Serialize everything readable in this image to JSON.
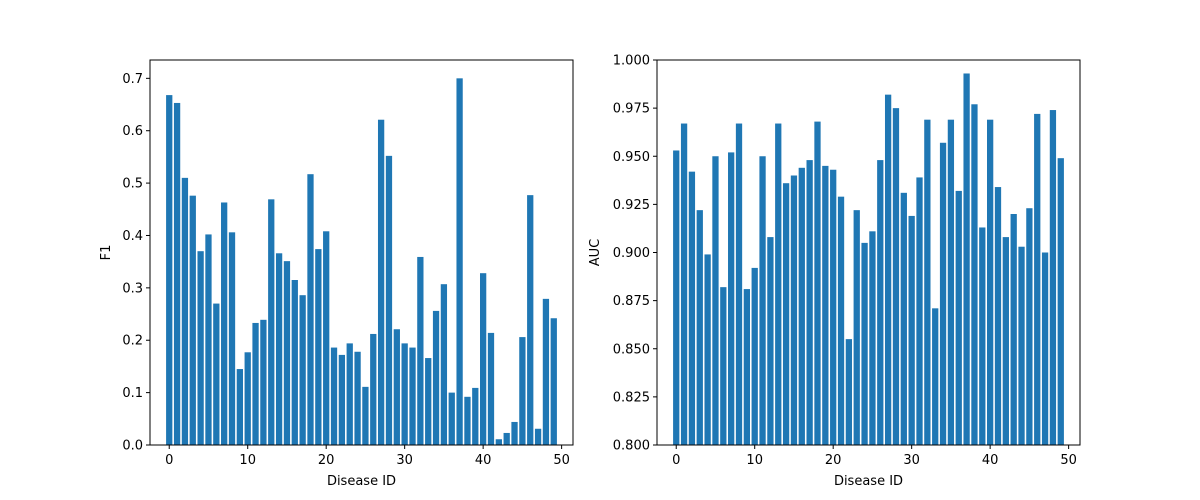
{
  "chart_data": [
    {
      "type": "bar",
      "xlabel": "Disease ID",
      "ylabel": "F1",
      "xlim": [
        -2.45,
        51.45
      ],
      "ylim": [
        0,
        0.735
      ],
      "xticks": [
        "0",
        "10",
        "20",
        "30",
        "40",
        "50"
      ],
      "xtick_values": [
        0,
        10,
        20,
        30,
        40,
        50
      ],
      "yticks": [
        "0.0",
        "0.1",
        "0.2",
        "0.3",
        "0.4",
        "0.5",
        "0.6",
        "0.7"
      ],
      "ytick_values": [
        0,
        0.1,
        0.2,
        0.3,
        0.4,
        0.5,
        0.6,
        0.7
      ],
      "color": "#1f77b4",
      "x": [
        0,
        1,
        2,
        3,
        4,
        5,
        6,
        7,
        8,
        9,
        10,
        11,
        12,
        13,
        14,
        15,
        16,
        17,
        18,
        19,
        20,
        21,
        22,
        23,
        24,
        25,
        26,
        27,
        28,
        29,
        30,
        31,
        32,
        33,
        34,
        35,
        36,
        37,
        38,
        39,
        40,
        41,
        42,
        43,
        44,
        45,
        46,
        47,
        48,
        49
      ],
      "values": [
        0.668,
        0.653,
        0.51,
        0.476,
        0.37,
        0.402,
        0.27,
        0.463,
        0.406,
        0.145,
        0.177,
        0.233,
        0.239,
        0.469,
        0.366,
        0.351,
        0.315,
        0.286,
        0.517,
        0.374,
        0.408,
        0.186,
        0.172,
        0.194,
        0.178,
        0.111,
        0.212,
        0.621,
        0.552,
        0.221,
        0.194,
        0.186,
        0.359,
        0.166,
        0.256,
        0.307,
        0.1,
        0.7,
        0.092,
        0.109,
        0.328,
        0.214,
        0.011,
        0.023,
        0.044,
        0.206,
        0.477,
        0.031,
        0.279,
        0.242
      ]
    },
    {
      "type": "bar",
      "xlabel": "Disease ID",
      "ylabel": "AUC",
      "xlim": [
        -2.45,
        51.45
      ],
      "ylim": [
        0.8,
        1.0
      ],
      "xticks": [
        "0",
        "10",
        "20",
        "30",
        "40",
        "50"
      ],
      "xtick_values": [
        0,
        10,
        20,
        30,
        40,
        50
      ],
      "yticks": [
        "0.800",
        "0.825",
        "0.850",
        "0.875",
        "0.900",
        "0.925",
        "0.950",
        "0.975",
        "1.000"
      ],
      "ytick_values": [
        0.8,
        0.825,
        0.85,
        0.875,
        0.9,
        0.925,
        0.95,
        0.975,
        1.0
      ],
      "color": "#1f77b4",
      "x": [
        0,
        1,
        2,
        3,
        4,
        5,
        6,
        7,
        8,
        9,
        10,
        11,
        12,
        13,
        14,
        15,
        16,
        17,
        18,
        19,
        20,
        21,
        22,
        23,
        24,
        25,
        26,
        27,
        28,
        29,
        30,
        31,
        32,
        33,
        34,
        35,
        36,
        37,
        38,
        39,
        40,
        41,
        42,
        43,
        44,
        45,
        46,
        47,
        48,
        49
      ],
      "values": [
        0.953,
        0.967,
        0.942,
        0.922,
        0.899,
        0.95,
        0.882,
        0.952,
        0.967,
        0.881,
        0.892,
        0.95,
        0.908,
        0.967,
        0.936,
        0.94,
        0.944,
        0.948,
        0.968,
        0.945,
        0.943,
        0.929,
        0.855,
        0.922,
        0.905,
        0.911,
        0.948,
        0.982,
        0.975,
        0.931,
        0.919,
        0.939,
        0.969,
        0.871,
        0.957,
        0.969,
        0.932,
        0.993,
        0.977,
        0.913,
        0.969,
        0.934,
        0.908,
        0.92,
        0.903,
        0.923,
        0.972,
        0.9,
        0.974,
        0.949
      ]
    }
  ]
}
